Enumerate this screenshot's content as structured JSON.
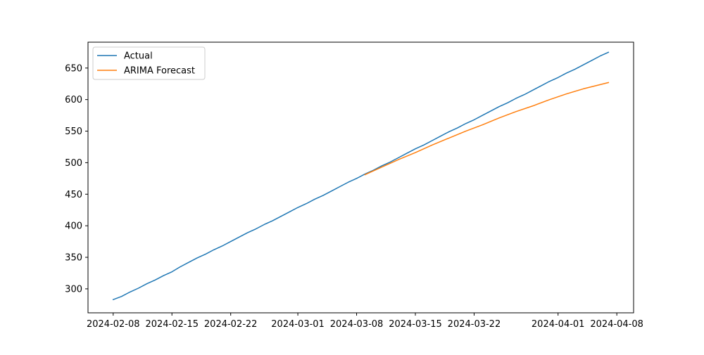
{
  "chart_data": {
    "type": "line",
    "title": "",
    "xlabel": "",
    "ylabel": "",
    "x_axis": {
      "type": "date",
      "range": [
        "2024-02-05",
        "2024-04-10"
      ],
      "ticks": [
        "2024-02-08",
        "2024-02-15",
        "2024-02-22",
        "2024-03-01",
        "2024-03-08",
        "2024-03-15",
        "2024-03-22",
        "2024-04-01",
        "2024-04-08"
      ]
    },
    "y_axis": {
      "range": [
        262,
        691
      ],
      "ticks": [
        300,
        350,
        400,
        450,
        500,
        550,
        600,
        650
      ]
    },
    "grid": false,
    "legend": {
      "position": "top-left",
      "entries": [
        "Actual",
        "ARIMA Forecast"
      ]
    },
    "series": [
      {
        "name": "Actual",
        "color": "#1f77b4",
        "points": [
          [
            "2024-02-08",
            283
          ],
          [
            "2024-02-09",
            288
          ],
          [
            "2024-02-10",
            295
          ],
          [
            "2024-02-11",
            301
          ],
          [
            "2024-02-12",
            308
          ],
          [
            "2024-02-13",
            314
          ],
          [
            "2024-02-14",
            321
          ],
          [
            "2024-02-15",
            327
          ],
          [
            "2024-02-16",
            335
          ],
          [
            "2024-02-17",
            342
          ],
          [
            "2024-02-18",
            349
          ],
          [
            "2024-02-19",
            355
          ],
          [
            "2024-02-20",
            362
          ],
          [
            "2024-02-21",
            368
          ],
          [
            "2024-02-22",
            375
          ],
          [
            "2024-02-23",
            382
          ],
          [
            "2024-02-24",
            389
          ],
          [
            "2024-02-25",
            395
          ],
          [
            "2024-02-26",
            402
          ],
          [
            "2024-02-27",
            408
          ],
          [
            "2024-02-28",
            415
          ],
          [
            "2024-02-29",
            422
          ],
          [
            "2024-03-01",
            429
          ],
          [
            "2024-03-02",
            435
          ],
          [
            "2024-03-03",
            442
          ],
          [
            "2024-03-04",
            448
          ],
          [
            "2024-03-05",
            455
          ],
          [
            "2024-03-06",
            462
          ],
          [
            "2024-03-07",
            469
          ],
          [
            "2024-03-08",
            475
          ],
          [
            "2024-03-09",
            482
          ],
          [
            "2024-03-10",
            488
          ],
          [
            "2024-03-11",
            495
          ],
          [
            "2024-03-12",
            501
          ],
          [
            "2024-03-13",
            508
          ],
          [
            "2024-03-14",
            515
          ],
          [
            "2024-03-15",
            522
          ],
          [
            "2024-03-16",
            528
          ],
          [
            "2024-03-17",
            535
          ],
          [
            "2024-03-18",
            542
          ],
          [
            "2024-03-19",
            549
          ],
          [
            "2024-03-20",
            555
          ],
          [
            "2024-03-21",
            562
          ],
          [
            "2024-03-22",
            568
          ],
          [
            "2024-03-23",
            575
          ],
          [
            "2024-03-24",
            582
          ],
          [
            "2024-03-25",
            589
          ],
          [
            "2024-03-26",
            595
          ],
          [
            "2024-03-27",
            602
          ],
          [
            "2024-03-28",
            608
          ],
          [
            "2024-03-29",
            615
          ],
          [
            "2024-03-30",
            622
          ],
          [
            "2024-03-31",
            629
          ],
          [
            "2024-04-01",
            635
          ],
          [
            "2024-04-02",
            642
          ],
          [
            "2024-04-03",
            648
          ],
          [
            "2024-04-04",
            655
          ],
          [
            "2024-04-05",
            662
          ],
          [
            "2024-04-06",
            669
          ],
          [
            "2024-04-07",
            675
          ]
        ]
      },
      {
        "name": "ARIMA Forecast",
        "color": "#ff7f0e",
        "points": [
          [
            "2024-03-09",
            481
          ],
          [
            "2024-03-11",
            493
          ],
          [
            "2024-03-13",
            505
          ],
          [
            "2024-03-15",
            516
          ],
          [
            "2024-03-17",
            528
          ],
          [
            "2024-03-19",
            539
          ],
          [
            "2024-03-21",
            550
          ],
          [
            "2024-03-23",
            560
          ],
          [
            "2024-03-25",
            571
          ],
          [
            "2024-03-27",
            581
          ],
          [
            "2024-03-29",
            590
          ],
          [
            "2024-03-31",
            600
          ],
          [
            "2024-04-02",
            609
          ],
          [
            "2024-04-04",
            617
          ],
          [
            "2024-04-07",
            627
          ]
        ]
      }
    ]
  }
}
